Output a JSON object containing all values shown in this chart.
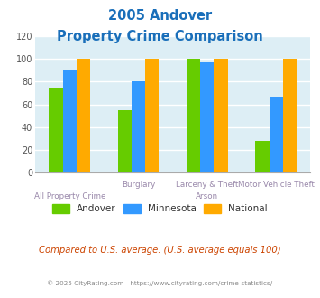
{
  "title_line1": "2005 Andover",
  "title_line2": "Property Crime Comparison",
  "title_color": "#1a6fba",
  "cat_labels_top": [
    "",
    "Burglary",
    "Larceny & Theft",
    "Motor Vehicle Theft"
  ],
  "cat_labels_bot": [
    "All Property Crime",
    "",
    "Arson",
    ""
  ],
  "series": {
    "Andover": [
      75,
      55,
      100,
      28
    ],
    "Minnesota": [
      90,
      80,
      97,
      67
    ],
    "National": [
      100,
      100,
      100,
      100
    ]
  },
  "colors": {
    "Andover": "#66cc00",
    "Minnesota": "#3399ff",
    "National": "#ffaa00"
  },
  "ylim": [
    0,
    120
  ],
  "yticks": [
    0,
    20,
    40,
    60,
    80,
    100,
    120
  ],
  "plot_bg": "#ddeef5",
  "grid_color": "#ffffff",
  "label_color": "#9988aa",
  "footer_text": "Compared to U.S. average. (U.S. average equals 100)",
  "footer_color": "#cc4400",
  "copyright_text": "© 2025 CityRating.com - https://www.cityrating.com/crime-statistics/",
  "copyright_color": "#888888"
}
